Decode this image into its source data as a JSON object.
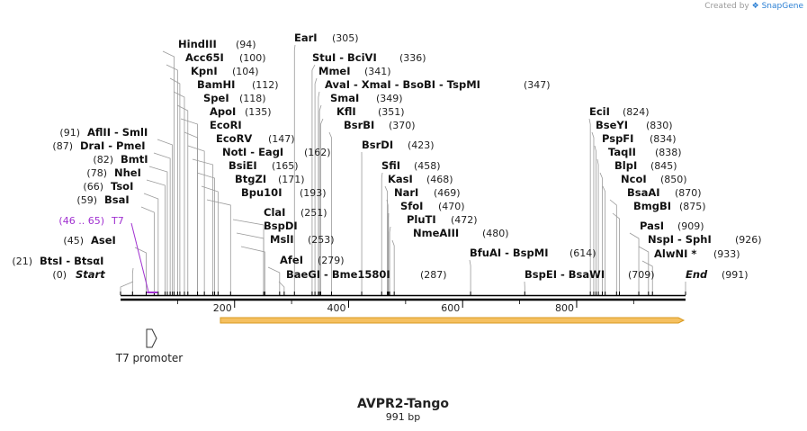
{
  "credit": {
    "prefix": "Created by",
    "brand": "SnapGene"
  },
  "map": {
    "name": "AVPR2-Tango",
    "length_label": "991 bp",
    "length": 991
  },
  "ruler": {
    "ticks": [
      "200",
      "400",
      "600",
      "800"
    ]
  },
  "colors": {
    "line": "#000000",
    "leader": "#999999",
    "primer": "#a030d0",
    "arrow_fill": "#f5c060",
    "arrow_edge": "#d89a20"
  },
  "sites": [
    {
      "label": "Start",
      "italic": true,
      "pos_label": "(0)",
      "pos": 0
    },
    {
      "label": "BtsI - BtsαI",
      "pos_label": "(21)",
      "pos": 21
    },
    {
      "label": "AseI",
      "pos_label": "(45)",
      "pos": 45
    },
    {
      "label": "BsaI",
      "pos_label": "(59)",
      "pos": 59
    },
    {
      "label": "TsoI",
      "pos_label": "(66)",
      "pos": 66
    },
    {
      "label": "NheI",
      "pos_label": "(78)",
      "pos": 78
    },
    {
      "label": "BmtI",
      "pos_label": "(82)",
      "pos": 82
    },
    {
      "label": "DraI - PmeI",
      "pos_label": "(87)",
      "pos": 87
    },
    {
      "label": "AflII - SmlI",
      "pos_label": "(91)",
      "pos": 91
    },
    {
      "label": "HindIII",
      "pos_label": "(94)",
      "pos": 94
    },
    {
      "label": "Acc65I",
      "pos_label": "(100)",
      "pos": 100
    },
    {
      "label": "KpnI",
      "pos_label": "(104)",
      "pos": 104
    },
    {
      "label": "BamHI",
      "pos_label": "(112)",
      "pos": 112
    },
    {
      "label": "SpeI",
      "pos_label": "(118)",
      "pos": 118
    },
    {
      "label": "ApoI",
      "pos_label": "(135)",
      "pos": 135
    },
    {
      "label": "EcoRI",
      "pos_label": "",
      "pos": 135
    },
    {
      "label": "EcoRV",
      "pos_label": "(147)",
      "pos": 147
    },
    {
      "label": "NotI - EagI",
      "pos_label": "(162)",
      "pos": 162
    },
    {
      "label": "BsiEI",
      "pos_label": "(165)",
      "pos": 165
    },
    {
      "label": "BtgZI",
      "pos_label": "(171)",
      "pos": 171
    },
    {
      "label": "Bpu10I",
      "pos_label": "(193)",
      "pos": 193
    },
    {
      "label": "ClaI",
      "pos_label": "(251)",
      "pos": 251
    },
    {
      "label": "BspDI",
      "pos_label": "",
      "pos": 251
    },
    {
      "label": "MslI",
      "pos_label": "(253)",
      "pos": 253
    },
    {
      "label": "AfeI",
      "pos_label": "(279)",
      "pos": 279
    },
    {
      "label": "BaeGI - Bme1580I",
      "pos_label": "(287)",
      "pos": 287
    },
    {
      "label": "EarI",
      "pos_label": "(305)",
      "pos": 305
    },
    {
      "label": "StuI - BciVI",
      "pos_label": "(336)",
      "pos": 336
    },
    {
      "label": "MmeI",
      "pos_label": "(341)",
      "pos": 341
    },
    {
      "label": "AvaI - XmaI - BsoBI - TspMI",
      "pos_label": "(347)",
      "pos": 347
    },
    {
      "label": "SmaI",
      "pos_label": "(349)",
      "pos": 349
    },
    {
      "label": "KflI",
      "pos_label": "(351)",
      "pos": 351
    },
    {
      "label": "BsrBI",
      "pos_label": "(370)",
      "pos": 370
    },
    {
      "label": "BsrDI",
      "pos_label": "(423)",
      "pos": 423
    },
    {
      "label": "SfiI",
      "pos_label": "(458)",
      "pos": 458
    },
    {
      "label": "KasI",
      "pos_label": "(468)",
      "pos": 468
    },
    {
      "label": "NarI",
      "pos_label": "(469)",
      "pos": 469
    },
    {
      "label": "SfoI",
      "pos_label": "(470)",
      "pos": 470
    },
    {
      "label": "PluTI",
      "pos_label": "(472)",
      "pos": 472
    },
    {
      "label": "NmeAIII",
      "pos_label": "(480)",
      "pos": 480
    },
    {
      "label": "BfuAI - BspMI",
      "pos_label": "(614)",
      "pos": 614
    },
    {
      "label": "BspEI - BsaWI",
      "pos_label": "(709)",
      "pos": 709
    },
    {
      "label": "EciI",
      "pos_label": "(824)",
      "pos": 824
    },
    {
      "label": "BseYI",
      "pos_label": "(830)",
      "pos": 830
    },
    {
      "label": "PspFI",
      "pos_label": "(834)",
      "pos": 834
    },
    {
      "label": "TaqII",
      "pos_label": "(838)",
      "pos": 838
    },
    {
      "label": "BlpI",
      "pos_label": "(845)",
      "pos": 845
    },
    {
      "label": "NcoI",
      "pos_label": "(850)",
      "pos": 850
    },
    {
      "label": "BsaAI",
      "pos_label": "(870)",
      "pos": 870
    },
    {
      "label": "BmgBI",
      "pos_label": "(875)",
      "pos": 875
    },
    {
      "label": "PasI",
      "pos_label": "(909)",
      "pos": 909
    },
    {
      "label": "NspI - SphI",
      "pos_label": "(926)",
      "pos": 926
    },
    {
      "label": "AlwNI *",
      "pos_label": "(933)",
      "pos": 933
    },
    {
      "label": "End",
      "italic": true,
      "pos_label": "(991)",
      "pos": 991
    }
  ],
  "primer": {
    "label": "T7",
    "range_label": "(46 .. 65)",
    "start": 46,
    "end": 65
  },
  "feature": {
    "label": "T7 promoter"
  }
}
